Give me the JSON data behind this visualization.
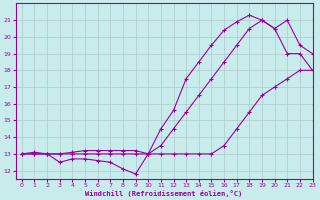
{
  "background_color": "#c8ecec",
  "grid_color": "#b0c8c8",
  "line_color": "#990099",
  "xlim": [
    -0.5,
    23
  ],
  "ylim": [
    11.5,
    22
  ],
  "xticks": [
    0,
    1,
    2,
    3,
    4,
    5,
    6,
    7,
    8,
    9,
    10,
    11,
    12,
    13,
    14,
    15,
    16,
    17,
    18,
    19,
    20,
    21,
    22,
    23
  ],
  "yticks": [
    12,
    13,
    14,
    15,
    16,
    17,
    18,
    19,
    20,
    21
  ],
  "xlabel": "Windchill (Refroidissement éolien,°C)",
  "line1_x": [
    0,
    1,
    2,
    3,
    4,
    5,
    6,
    7,
    8,
    9,
    10,
    11,
    12,
    13,
    14,
    15,
    16,
    17,
    18,
    19,
    20,
    21,
    22,
    23
  ],
  "line1_y": [
    13.0,
    13.1,
    13.0,
    12.5,
    12.7,
    12.7,
    12.6,
    12.5,
    12.1,
    11.8,
    13.0,
    14.5,
    15.6,
    17.5,
    18.5,
    19.5,
    20.4,
    20.9,
    21.3,
    21.0,
    20.5,
    19.0,
    19.0,
    18.0
  ],
  "line2_x": [
    0,
    1,
    2,
    3,
    4,
    5,
    6,
    7,
    8,
    9,
    10,
    11,
    12,
    13,
    14,
    15,
    16,
    17,
    18,
    19,
    20,
    21,
    22,
    23
  ],
  "line2_y": [
    13.0,
    13.0,
    13.0,
    13.0,
    13.1,
    13.2,
    13.2,
    13.2,
    13.2,
    13.2,
    13.0,
    13.0,
    13.0,
    13.0,
    13.0,
    13.0,
    13.5,
    14.5,
    15.5,
    16.5,
    17.0,
    17.5,
    18.0,
    18.0
  ],
  "line3_x": [
    0,
    1,
    2,
    3,
    4,
    5,
    6,
    7,
    8,
    9,
    10,
    11,
    12,
    13,
    14,
    15,
    16,
    17,
    18,
    19,
    20,
    21,
    22,
    23
  ],
  "line3_y": [
    13.0,
    13.0,
    13.0,
    13.0,
    13.0,
    13.0,
    13.0,
    13.0,
    13.0,
    13.0,
    13.0,
    13.5,
    14.5,
    15.5,
    16.5,
    17.5,
    18.5,
    19.5,
    20.5,
    21.0,
    20.5,
    21.0,
    19.5,
    19.0
  ]
}
